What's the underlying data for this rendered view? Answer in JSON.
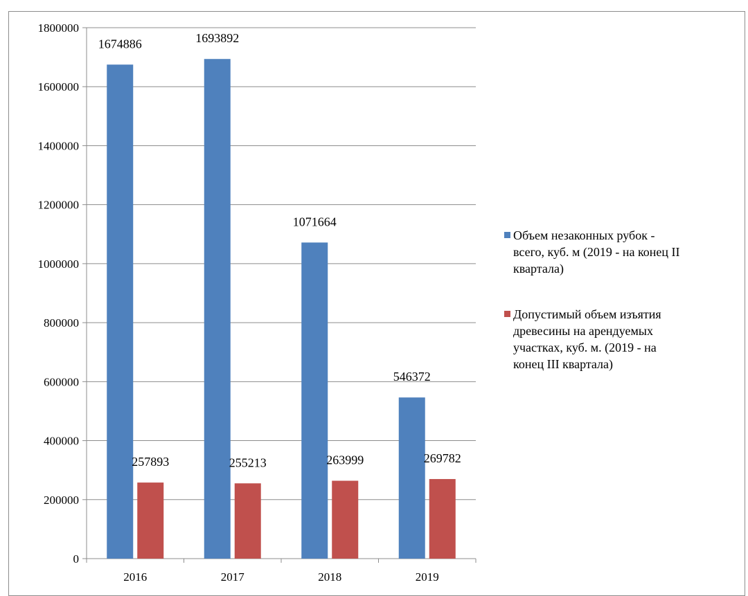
{
  "chart_data": {
    "type": "bar",
    "categories": [
      "2016",
      "2017",
      "2018",
      "2019"
    ],
    "ylim": [
      0,
      1800000
    ],
    "yticks": [
      "0",
      "200000",
      "400000",
      "600000",
      "800000",
      "1000000",
      "1200000",
      "1400000",
      "1600000",
      "1800000"
    ],
    "ytick_values": [
      0,
      200000,
      400000,
      600000,
      800000,
      1000000,
      1200000,
      1400000,
      1600000,
      1800000
    ],
    "grid": true,
    "legend_position": "right",
    "series": [
      {
        "name": "Объем незаконных  рубок - всего, куб. м (2019  - на конец II квартала)",
        "color": "#4F81BD",
        "values": [
          1674886,
          1693892,
          1071664,
          546372
        ],
        "labels": [
          "1674886",
          "1693892",
          "1071664",
          "546372"
        ]
      },
      {
        "name": "Допустимый объем изъятия древесины на арендуемых участках, куб. м. (2019  - на конец III квартала)",
        "color": "#C0504D",
        "values": [
          257893,
          255213,
          263999,
          269782
        ],
        "labels": [
          "257893",
          "255213",
          "263999",
          "269782"
        ]
      }
    ]
  },
  "legend": {
    "items": [
      {
        "text": "Объем незаконных  рубок -\nвсего, куб. м (2019  - на конец II\nквартала)",
        "color": "#4F81BD"
      },
      {
        "text": "Допустимый объем изъятия\nдревесины на арендуемых\nучастках, куб. м. (2019  - на\nконец III квартала)",
        "color": "#C0504D"
      }
    ]
  }
}
